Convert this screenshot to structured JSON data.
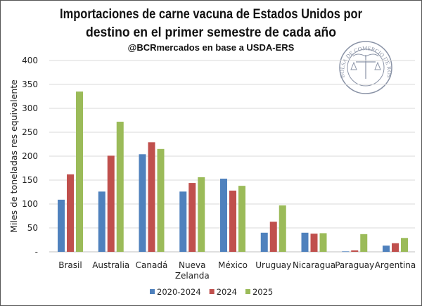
{
  "chart_data": {
    "type": "bar",
    "title_lines": [
      "Importaciones de carne vacuna de Estados Unidos por",
      "destino en el primer semestre de cada año"
    ],
    "subtitle": "@BCRmercados en base a USDA-ERS",
    "ylabel": "Miles de toneladas res equivalente",
    "xlabel": "",
    "ylim": [
      0,
      400
    ],
    "yticks": [
      0,
      50,
      100,
      150,
      200,
      250,
      300,
      350,
      400
    ],
    "ytick_labels": [
      "-",
      "50",
      "100",
      "150",
      "200",
      "250",
      "300",
      "350",
      "400"
    ],
    "grid": true,
    "legend_position": "bottom",
    "categories": [
      [
        "Brasil"
      ],
      [
        "Australia"
      ],
      [
        "Canadá"
      ],
      [
        "Nueva",
        "Zelanda"
      ],
      [
        "México"
      ],
      [
        "Uruguay"
      ],
      [
        "Nicaragua"
      ],
      [
        "Paraguay"
      ],
      [
        "Argentina"
      ]
    ],
    "series": [
      {
        "name": "2020-2024",
        "color": "#4f81bd",
        "values": [
          109,
          126,
          204,
          126,
          153,
          40,
          40,
          1,
          13
        ]
      },
      {
        "name": "2024",
        "color": "#c0504d",
        "values": [
          162,
          201,
          229,
          144,
          128,
          63,
          38,
          3,
          18
        ]
      },
      {
        "name": "2025",
        "color": "#9bbb59",
        "values": [
          335,
          272,
          215,
          156,
          138,
          97,
          39,
          37,
          29
        ]
      }
    ]
  },
  "seal": {
    "text": "BOLSA DE COMERCIO DE ROSARIO"
  }
}
